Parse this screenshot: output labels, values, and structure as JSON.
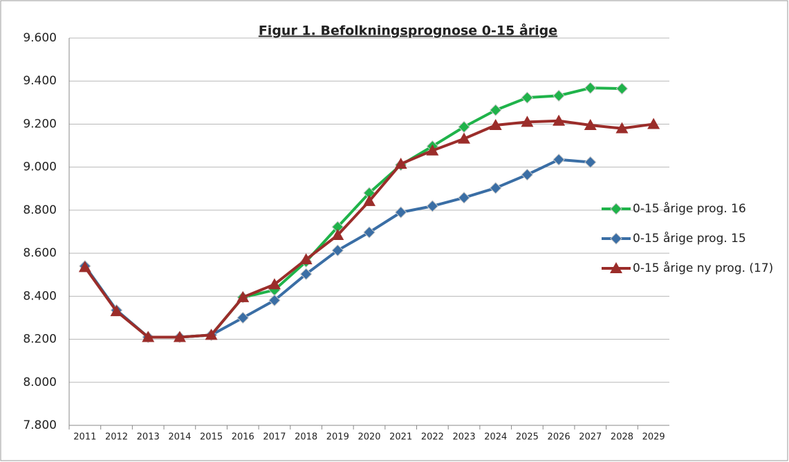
{
  "chart_data": {
    "type": "line",
    "title": "Figur 1. Befolkningsprognose 0-15 årige",
    "categories": [
      "2011",
      "2012",
      "2013",
      "2014",
      "2015",
      "2016",
      "2017",
      "2018",
      "2019",
      "2020",
      "2021",
      "2022",
      "2023",
      "2024",
      "2025",
      "2026",
      "2027",
      "2028",
      "2029"
    ],
    "series": [
      {
        "name": "0-15 årige prog. 16",
        "color": "#1fb34a",
        "marker": "diamond",
        "values": [
          8540,
          8335,
          8210,
          8210,
          8220,
          8395,
          8429,
          8561,
          8722,
          8880,
          9010,
          9097,
          9187,
          9265,
          9323,
          9332,
          9368,
          9365,
          null
        ]
      },
      {
        "name": "0-15 årige prog. 15",
        "color": "#3a6ea5",
        "marker": "diamond",
        "values": [
          8540,
          8335,
          8210,
          8210,
          8220,
          8300,
          8381,
          8503,
          8613,
          8697,
          8790,
          8819,
          8858,
          8903,
          8965,
          9035,
          9023,
          null,
          null
        ]
      },
      {
        "name": "0-15 årige ny prog. (17)",
        "color": "#9b2d2a",
        "marker": "triangle",
        "values": [
          8535,
          8330,
          8210,
          8210,
          8220,
          8395,
          8455,
          8571,
          8684,
          8842,
          9015,
          9077,
          9132,
          9195,
          9210,
          9215,
          9195,
          9180,
          9200
        ]
      }
    ],
    "ylim": [
      7800,
      9600
    ],
    "yticks": [
      {
        "value": 7800,
        "label": "7.800"
      },
      {
        "value": 8000,
        "label": "8.000"
      },
      {
        "value": 8200,
        "label": "8.200"
      },
      {
        "value": 8400,
        "label": "8.400"
      },
      {
        "value": 8600,
        "label": "8.600"
      },
      {
        "value": 8800,
        "label": "8.800"
      },
      {
        "value": 9000,
        "label": "9.000"
      },
      {
        "value": 9200,
        "label": "9.200"
      },
      {
        "value": 9400,
        "label": "9.400"
      },
      {
        "value": 9600,
        "label": "9.600"
      }
    ],
    "grid": true,
    "legend": "right"
  }
}
